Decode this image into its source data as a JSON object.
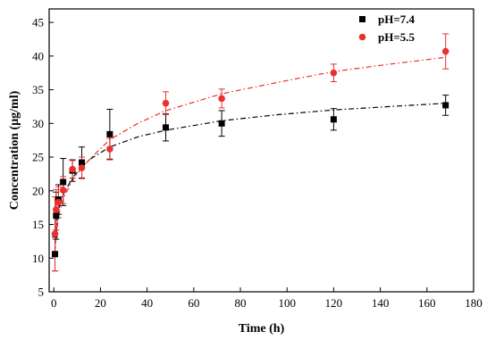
{
  "chart_data": {
    "type": "scatter",
    "title": "",
    "xlabel": "Time (h)",
    "ylabel": "Concentration (μg/ml)",
    "xlim": [
      -2,
      180
    ],
    "ylim": [
      5,
      47
    ],
    "xticks": [
      0,
      20,
      40,
      60,
      80,
      100,
      120,
      140,
      160,
      180
    ],
    "yticks": [
      5,
      10,
      15,
      20,
      25,
      30,
      35,
      40,
      45
    ],
    "grid": false,
    "legend_position": "top-right",
    "series": [
      {
        "name": "pH=7.4",
        "marker": "square",
        "color": "#000000",
        "fit_line_style": "dash-dot",
        "x": [
          0.5,
          1,
          2,
          4,
          8,
          12,
          24,
          48,
          72,
          120,
          168
        ],
        "y": [
          10.6,
          16.3,
          18.7,
          21.3,
          23.0,
          24.2,
          28.4,
          29.4,
          30.0,
          30.6,
          32.7
        ],
        "err": [
          2.5,
          3.5,
          2.2,
          3.5,
          1.6,
          2.3,
          3.7,
          2.0,
          1.9,
          1.6,
          1.5
        ],
        "fit_x": [
          0.5,
          2,
          4,
          8,
          12,
          16,
          24,
          36,
          48,
          72,
          96,
          120,
          144,
          168
        ],
        "fit_y": [
          12.0,
          17.3,
          19.4,
          21.9,
          23.6,
          24.8,
          26.5,
          28.0,
          29.0,
          30.4,
          31.3,
          32.0,
          32.5,
          33.0
        ]
      },
      {
        "name": "pH=5.5",
        "marker": "circle",
        "color": "#e8312f",
        "fit_line_style": "dash-dot",
        "x": [
          0.5,
          1,
          2,
          4,
          8,
          12,
          24,
          48,
          72,
          120,
          168
        ],
        "y": [
          13.6,
          17.2,
          18.3,
          20.1,
          23.2,
          23.4,
          26.2,
          33.0,
          33.7,
          37.5,
          40.7
        ],
        "err": [
          5.5,
          3.0,
          2.3,
          2.0,
          1.3,
          1.6,
          1.6,
          1.7,
          1.4,
          1.3,
          2.6
        ],
        "fit_x": [
          0.5,
          2,
          4,
          8,
          12,
          16,
          24,
          36,
          48,
          72,
          96,
          120,
          144,
          168
        ],
        "fit_y": [
          11.0,
          16.3,
          18.8,
          21.6,
          23.4,
          24.9,
          27.6,
          30.0,
          31.9,
          34.4,
          36.1,
          37.7,
          38.8,
          39.8
        ]
      }
    ]
  }
}
